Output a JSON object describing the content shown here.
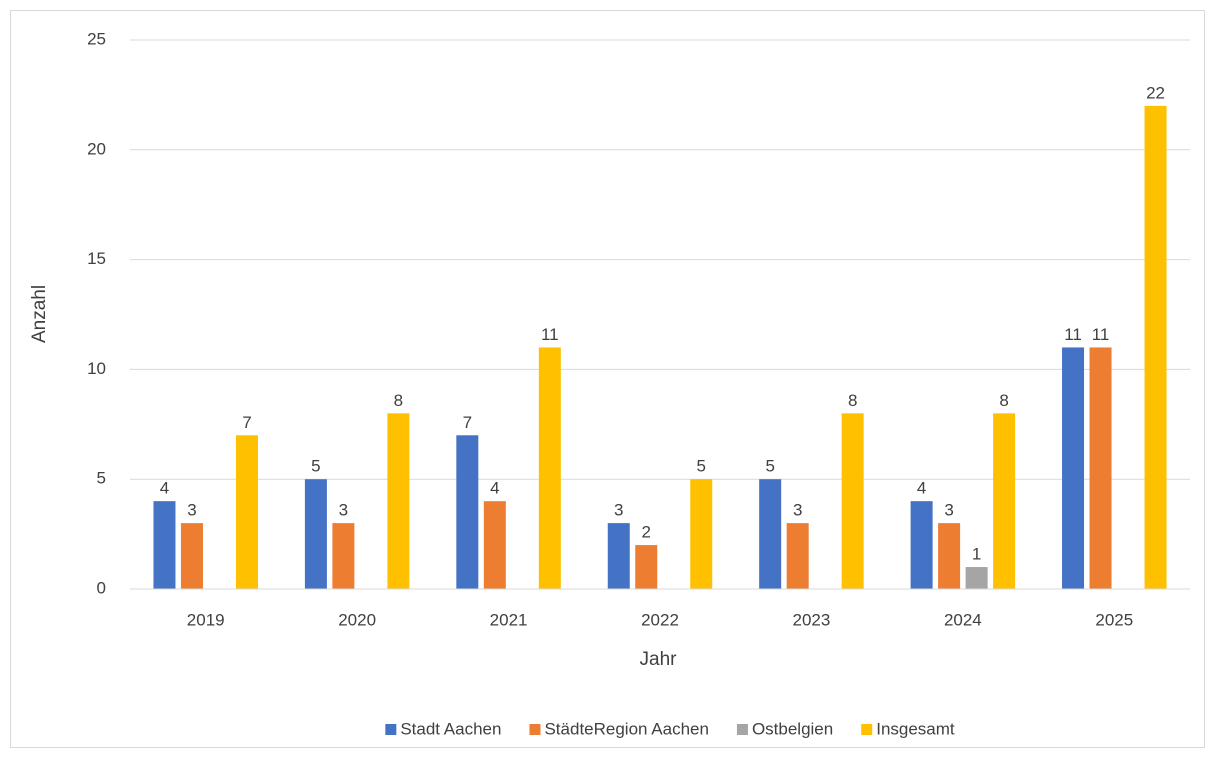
{
  "chart_data": {
    "type": "bar",
    "x_label": "Jahr",
    "y_label": "Anzahl",
    "categories": [
      "2019",
      "2020",
      "2021",
      "2022",
      "2023",
      "2024",
      "2025"
    ],
    "series": [
      {
        "name": "Stadt Aachen",
        "color": "#4472c4",
        "values": [
          4,
          5,
          7,
          3,
          5,
          4,
          11
        ]
      },
      {
        "name": "StädteRegion Aachen",
        "color": "#ed7d31",
        "values": [
          3,
          3,
          4,
          2,
          3,
          3,
          11
        ]
      },
      {
        "name": "Ostbelgien",
        "color": "#a5a5a5",
        "values": [
          null,
          null,
          null,
          null,
          null,
          1,
          null
        ]
      },
      {
        "name": "Insgesamt",
        "color": "#ffc000",
        "values": [
          7,
          8,
          11,
          5,
          8,
          8,
          22
        ]
      }
    ],
    "ylim": [
      0,
      25
    ],
    "yticks": [
      0,
      5,
      10,
      15,
      20,
      25
    ],
    "grid": true,
    "legend": "bottom"
  }
}
